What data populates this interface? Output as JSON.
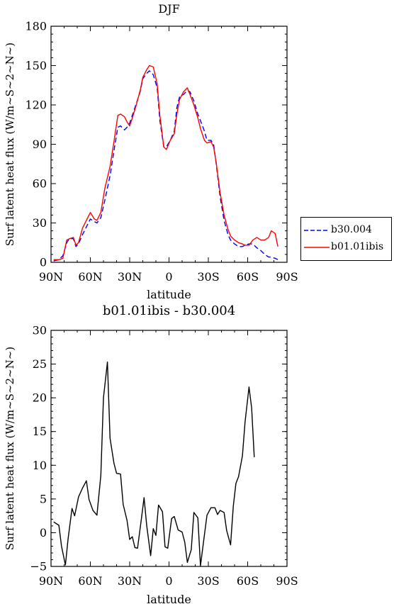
{
  "chart_data": [
    {
      "type": "line",
      "title": "DJF",
      "xlabel": "latitude",
      "ylabel": "Surf latent heat flux (W/m~S~2~N~)",
      "xlim": [
        90,
        -90
      ],
      "ylim": [
        0,
        180
      ],
      "xticks": [
        90,
        60,
        30,
        0,
        -30,
        -60,
        -90
      ],
      "xtick_labels": [
        "90N",
        "60N",
        "30N",
        "0",
        "30S",
        "60S",
        "90S"
      ],
      "yticks": [
        0,
        30,
        60,
        90,
        120,
        150,
        180
      ],
      "ytick_labels": [
        "0",
        "30",
        "60",
        "90",
        "120",
        "150",
        "180"
      ],
      "legend": "right",
      "series": [
        {
          "name": "b30.004",
          "color": "#0000ff",
          "dash": "dashed",
          "points": [
            [
              88,
              1
            ],
            [
              84,
              2
            ],
            [
              81,
              5
            ],
            [
              78,
              15
            ],
            [
              76,
              18
            ],
            [
              73,
              18
            ],
            [
              71,
              12
            ],
            [
              69,
              14
            ],
            [
              66,
              21
            ],
            [
              63,
              27
            ],
            [
              60,
              33
            ],
            [
              57,
              31
            ],
            [
              55,
              30
            ],
            [
              52,
              34
            ],
            [
              49,
              47
            ],
            [
              45,
              66
            ],
            [
              42,
              85
            ],
            [
              39,
              103
            ],
            [
              37,
              104
            ],
            [
              34,
              101
            ],
            [
              32,
              103
            ],
            [
              30,
              106
            ],
            [
              28,
              112
            ],
            [
              25,
              121
            ],
            [
              22,
              130
            ],
            [
              20,
              140
            ],
            [
              17,
              144
            ],
            [
              15,
              146
            ],
            [
              12,
              143
            ],
            [
              9,
              133
            ],
            [
              7,
              108
            ],
            [
              4,
              88
            ],
            [
              2,
              88
            ],
            [
              -1,
              93
            ],
            [
              -4,
              100
            ],
            [
              -6,
              118
            ],
            [
              -8,
              126
            ],
            [
              -11,
              128
            ],
            [
              -14,
              131
            ],
            [
              -16,
              130
            ],
            [
              -19,
              123
            ],
            [
              -22,
              113
            ],
            [
              -24,
              108
            ],
            [
              -27,
              100
            ],
            [
              -29,
              93
            ],
            [
              -32,
              93
            ],
            [
              -34,
              90
            ],
            [
              -36,
              75
            ],
            [
              -39,
              50
            ],
            [
              -42,
              32
            ],
            [
              -45,
              21
            ],
            [
              -47,
              17
            ],
            [
              -50,
              14
            ],
            [
              -53,
              12
            ],
            [
              -56,
              12
            ],
            [
              -58,
              13
            ],
            [
              -61,
              14
            ],
            [
              -64,
              14
            ],
            [
              -67,
              11
            ],
            [
              -70,
              9
            ],
            [
              -73,
              6
            ],
            [
              -76,
              4
            ],
            [
              -78,
              4
            ],
            [
              -81,
              3
            ],
            [
              -83,
              2
            ]
          ]
        },
        {
          "name": "b01.01ibis",
          "color": "#ff0000",
          "dash": "solid",
          "points": [
            [
              88,
              2
            ],
            [
              84,
              2
            ],
            [
              81,
              3
            ],
            [
              78,
              17
            ],
            [
              76,
              18
            ],
            [
              73,
              19
            ],
            [
              71,
              13
            ],
            [
              69,
              15
            ],
            [
              66,
              26
            ],
            [
              63,
              32
            ],
            [
              60,
              38
            ],
            [
              57,
              33
            ],
            [
              55,
              32
            ],
            [
              52,
              38
            ],
            [
              49,
              56
            ],
            [
              45,
              73
            ],
            [
              42,
              92
            ],
            [
              39,
              112
            ],
            [
              37,
              113
            ],
            [
              34,
              111
            ],
            [
              32,
              107
            ],
            [
              30,
              104
            ],
            [
              28,
              110
            ],
            [
              25,
              120
            ],
            [
              22,
              131
            ],
            [
              20,
              141
            ],
            [
              17,
              147
            ],
            [
              15,
              150
            ],
            [
              12,
              149
            ],
            [
              9,
              136
            ],
            [
              7,
              112
            ],
            [
              4,
              88
            ],
            [
              2,
              86
            ],
            [
              -1,
              93
            ],
            [
              -4,
              98
            ],
            [
              -6,
              113
            ],
            [
              -8,
              124
            ],
            [
              -11,
              130
            ],
            [
              -14,
              133
            ],
            [
              -16,
              128
            ],
            [
              -19,
              120
            ],
            [
              -22,
              110
            ],
            [
              -24,
              102
            ],
            [
              -27,
              93
            ],
            [
              -29,
              91
            ],
            [
              -32,
              92
            ],
            [
              -34,
              88
            ],
            [
              -36,
              76
            ],
            [
              -39,
              53
            ],
            [
              -42,
              36
            ],
            [
              -45,
              25
            ],
            [
              -47,
              20
            ],
            [
              -50,
              17
            ],
            [
              -53,
              15
            ],
            [
              -56,
              14
            ],
            [
              -58,
              13
            ],
            [
              -61,
              13
            ],
            [
              -64,
              17
            ],
            [
              -67,
              19
            ],
            [
              -70,
              17
            ],
            [
              -73,
              17
            ],
            [
              -76,
              19
            ],
            [
              -78,
              24
            ],
            [
              -81,
              22
            ],
            [
              -83,
              12
            ]
          ]
        }
      ]
    },
    {
      "type": "line",
      "title": "b01.01ibis - b30.004",
      "xlabel": "latitude",
      "ylabel": "Surf latent heat flux (W/m~S~2~N~)",
      "xlim": [
        90,
        -90
      ],
      "ylim": [
        -5,
        30
      ],
      "xticks": [
        90,
        60,
        30,
        0,
        -30,
        -60,
        -90
      ],
      "xtick_labels": [
        "90N",
        "60N",
        "30N",
        "0",
        "30S",
        "60S",
        "90S"
      ],
      "yticks": [
        -5,
        0,
        5,
        10,
        15,
        20,
        25,
        30
      ],
      "ytick_labels": [
        "−5",
        "0",
        "5",
        "10",
        "15",
        "20",
        "25",
        "30"
      ],
      "series": [
        {
          "color": "#000000",
          "dash": "solid",
          "points": [
            [
              88,
              1.6
            ],
            [
              84,
              1.1
            ],
            [
              82,
              -2.0
            ],
            [
              79,
              -4.8
            ],
            [
              77,
              -1.0
            ],
            [
              74,
              3.6
            ],
            [
              72,
              2.5
            ],
            [
              69,
              5.3
            ],
            [
              66,
              6.6
            ],
            [
              63,
              7.7
            ],
            [
              61,
              4.9
            ],
            [
              58,
              3.3
            ],
            [
              55,
              2.6
            ],
            [
              52,
              8.5
            ],
            [
              50,
              20.0
            ],
            [
              47,
              25.3
            ],
            [
              45,
              14.0
            ],
            [
              42,
              10.3
            ],
            [
              40,
              8.8
            ],
            [
              37,
              8.7
            ],
            [
              35,
              4.2
            ],
            [
              32,
              1.8
            ],
            [
              30,
              -1.0
            ],
            [
              28,
              -0.6
            ],
            [
              26,
              -2.2
            ],
            [
              24,
              -2.3
            ],
            [
              21,
              2.2
            ],
            [
              19,
              5.2
            ],
            [
              17,
              1.0
            ],
            [
              14,
              -3.4
            ],
            [
              12,
              0.6
            ],
            [
              10,
              -0.4
            ],
            [
              8,
              4.1
            ],
            [
              5,
              3.1
            ],
            [
              3,
              -2.1
            ],
            [
              1,
              -2.3
            ],
            [
              -2,
              2.1
            ],
            [
              -4,
              2.4
            ],
            [
              -7,
              0.4
            ],
            [
              -10,
              0.1
            ],
            [
              -12,
              -1.4
            ],
            [
              -14,
              -4.4
            ],
            [
              -17,
              -2.5
            ],
            [
              -19,
              3.0
            ],
            [
              -22,
              2.2
            ],
            [
              -24,
              -4.9
            ],
            [
              -27,
              -0.3
            ],
            [
              -29,
              2.6
            ],
            [
              -32,
              3.7
            ],
            [
              -35,
              3.7
            ],
            [
              -37,
              2.7
            ],
            [
              -39,
              3.3
            ],
            [
              -42,
              3.0
            ],
            [
              -44,
              0.3
            ],
            [
              -47,
              -1.8
            ],
            [
              -49,
              3.9
            ],
            [
              -51,
              7.3
            ],
            [
              -53,
              8.3
            ],
            [
              -56,
              11.4
            ],
            [
              -58,
              16.4
            ],
            [
              -61,
              21.6
            ],
            [
              -63,
              18.5
            ],
            [
              -65,
              11.2
            ]
          ]
        }
      ]
    }
  ]
}
